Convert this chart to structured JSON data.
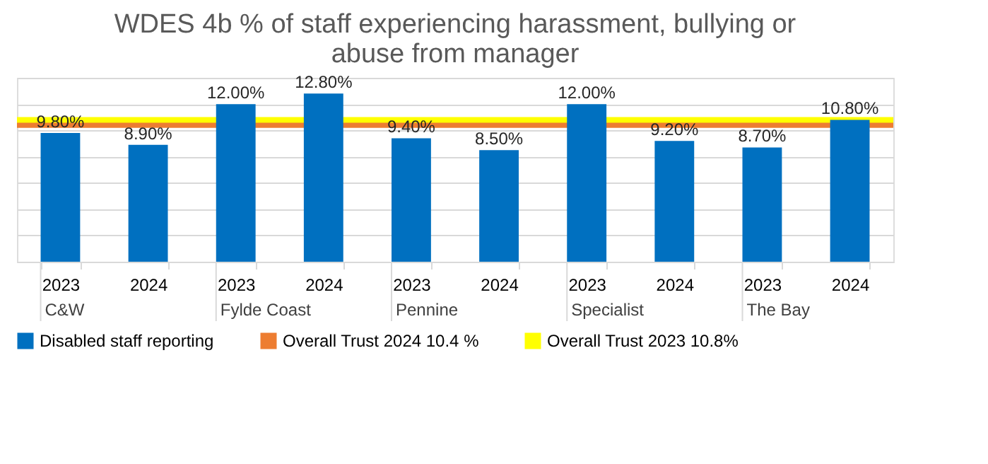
{
  "chart_data": {
    "type": "bar",
    "title": "WDES 4b % of staff experiencing harassment, bullying or abuse from manager",
    "categories": [
      "2023",
      "2024",
      "2023",
      "2024",
      "2023",
      "2024",
      "2023",
      "2024",
      "2023",
      "2024"
    ],
    "annotations": [
      "C&W",
      "Fylde Coast",
      "Pennine",
      "Specialist",
      "The Bay"
    ],
    "series": [
      {
        "name": "Disabled staff reporting",
        "color": "#0070c0",
        "values": [
          9.8,
          8.9,
          12.0,
          12.8,
          9.4,
          8.5,
          12.0,
          9.2,
          8.7,
          10.8
        ],
        "value_labels": [
          "9.80%",
          "8.90%",
          "12.00%",
          "12.80%",
          "9.40%",
          "8.50%",
          "12.00%",
          "9.20%",
          "8.70%",
          "10.80%"
        ]
      }
    ],
    "ref_lines": [
      {
        "axis": "y",
        "value": 10.4,
        "label": "Overall Trust 2024 10.4 %",
        "color": "#ed7d31"
      },
      {
        "axis": "y",
        "value": 10.8,
        "label": "Overall Trust 2023 10.8%",
        "color": "#ffff00"
      }
    ],
    "ylim": [
      0,
      14
    ],
    "grid": "y",
    "tick_labels": "x",
    "legend": "bottom"
  }
}
